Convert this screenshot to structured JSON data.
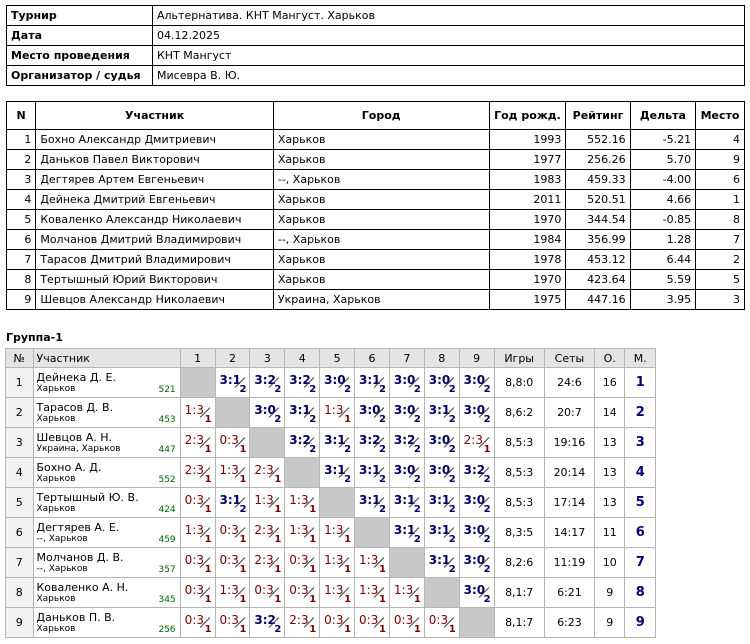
{
  "info": [
    {
      "label": "Турнир",
      "value": "Альтернатива. КНТ Мангуст. Харьков"
    },
    {
      "label": "Дата",
      "value": "04.12.2025"
    },
    {
      "label": "Место проведения",
      "value": "КНТ Мангуст"
    },
    {
      "label": "Организатор / судья",
      "value": "Мисевра В. Ю."
    }
  ],
  "participants": {
    "headers": [
      "N",
      "Участник",
      "Город",
      "Год рожд.",
      "Рейтинг",
      "Дельта",
      "Место"
    ],
    "rows": [
      [
        "1",
        "Бохно Александр Дмитриевич",
        "Харьков",
        "1993",
        "552.16",
        "-5.21",
        "4"
      ],
      [
        "2",
        "Даньков Павел Викторович",
        "Харьков",
        "1977",
        "256.26",
        "5.70",
        "9"
      ],
      [
        "3",
        "Дегтярев Артем Евгеньевич",
        "--, Харьков",
        "1983",
        "459.33",
        "-4.00",
        "6"
      ],
      [
        "4",
        "Дейнека Дмитрий Евгеньевич",
        "Харьков",
        "2011",
        "520.51",
        "4.66",
        "1"
      ],
      [
        "5",
        "Коваленко Александр Николаевич",
        "Харьков",
        "1970",
        "344.54",
        "-0.85",
        "8"
      ],
      [
        "6",
        "Молчанов Дмитрий Владимирович",
        "--, Харьков",
        "1984",
        "356.99",
        "1.28",
        "7"
      ],
      [
        "7",
        "Тарасов Дмитрий Владимирович",
        "Харьков",
        "1978",
        "453.12",
        "6.44",
        "2"
      ],
      [
        "8",
        "Тертышный Юрий Викторович",
        "Харьков",
        "1970",
        "423.64",
        "5.59",
        "5"
      ],
      [
        "9",
        "Шевцов Александр Николаевич",
        "Украина, Харьков",
        "1975",
        "447.16",
        "3.95",
        "3"
      ]
    ]
  },
  "group": {
    "title": "Группа-1",
    "headers": {
      "num": "№",
      "name": "Участник",
      "cols": [
        "1",
        "2",
        "3",
        "4",
        "5",
        "6",
        "7",
        "8",
        "9"
      ],
      "games": "Игры",
      "sets": "Сеты",
      "points": "О.",
      "place": "М."
    },
    "rows": [
      {
        "n": "1",
        "name": "Дейнека Д. Е.",
        "city": "Харьков",
        "rating": "521",
        "results": [
          "",
          "3:1",
          "3:2",
          "3:2",
          "3:0",
          "3:1",
          "3:0",
          "3:0",
          "3:0"
        ],
        "games": "8,8:0",
        "sets": "24:6",
        "points": "16",
        "place": "1"
      },
      {
        "n": "2",
        "name": "Тарасов Д. В.",
        "city": "Харьков",
        "rating": "453",
        "results": [
          "1:3",
          "",
          "3:0",
          "3:1",
          "1:3",
          "3:0",
          "3:0",
          "3:1",
          "3:0"
        ],
        "games": "8,6:2",
        "sets": "20:7",
        "points": "14",
        "place": "2"
      },
      {
        "n": "3",
        "name": "Шевцов А. Н.",
        "city": "Украина, Харьков",
        "rating": "447",
        "results": [
          "2:3",
          "0:3",
          "",
          "3:2",
          "3:1",
          "3:2",
          "3:2",
          "3:0",
          "2:3"
        ],
        "games": "8,5:3",
        "sets": "19:16",
        "points": "13",
        "place": "3"
      },
      {
        "n": "4",
        "name": "Бохно А. Д.",
        "city": "Харьков",
        "rating": "552",
        "results": [
          "2:3",
          "1:3",
          "2:3",
          "",
          "3:1",
          "3:1",
          "3:0",
          "3:0",
          "3:2"
        ],
        "games": "8,5:3",
        "sets": "20:14",
        "points": "13",
        "place": "4"
      },
      {
        "n": "5",
        "name": "Тертышный Ю. В.",
        "city": "Харьков",
        "rating": "424",
        "results": [
          "0:3",
          "3:1",
          "1:3",
          "1:3",
          "",
          "3:1",
          "3:1",
          "3:1",
          "3:0"
        ],
        "games": "8,5:3",
        "sets": "17:14",
        "points": "13",
        "place": "5"
      },
      {
        "n": "6",
        "name": "Дегтярев А. Е.",
        "city": "--, Харьков",
        "rating": "459",
        "results": [
          "1:3",
          "0:3",
          "2:3",
          "1:3",
          "1:3",
          "",
          "3:1",
          "3:1",
          "3:0"
        ],
        "games": "8,3:5",
        "sets": "14:17",
        "points": "11",
        "place": "6"
      },
      {
        "n": "7",
        "name": "Молчанов Д. В.",
        "city": "--, Харьков",
        "rating": "357",
        "results": [
          "0:3",
          "0:3",
          "2:3",
          "0:3",
          "1:3",
          "1:3",
          "",
          "3:1",
          "3:0"
        ],
        "games": "8,2:6",
        "sets": "11:19",
        "points": "10",
        "place": "7"
      },
      {
        "n": "8",
        "name": "Коваленко А. Н.",
        "city": "Харьков",
        "rating": "345",
        "results": [
          "0:3",
          "1:3",
          "0:3",
          "0:3",
          "1:3",
          "1:3",
          "1:3",
          "",
          "3:0"
        ],
        "games": "8,1:7",
        "sets": "6:21",
        "points": "9",
        "place": "8"
      },
      {
        "n": "9",
        "name": "Даньков П. В.",
        "city": "Харьков",
        "rating": "256",
        "results": [
          "0:3",
          "0:3",
          "3:2",
          "2:3",
          "0:3",
          "0:3",
          "0:3",
          "0:3",
          ""
        ],
        "games": "8,1:7",
        "sets": "6:23",
        "points": "9",
        "place": "9"
      }
    ]
  },
  "colors": {
    "win": "#000064",
    "loss": "#7a0000",
    "rating": "#006400",
    "diag": "#c8c8c8",
    "header_bg": "#e4e4e4"
  }
}
